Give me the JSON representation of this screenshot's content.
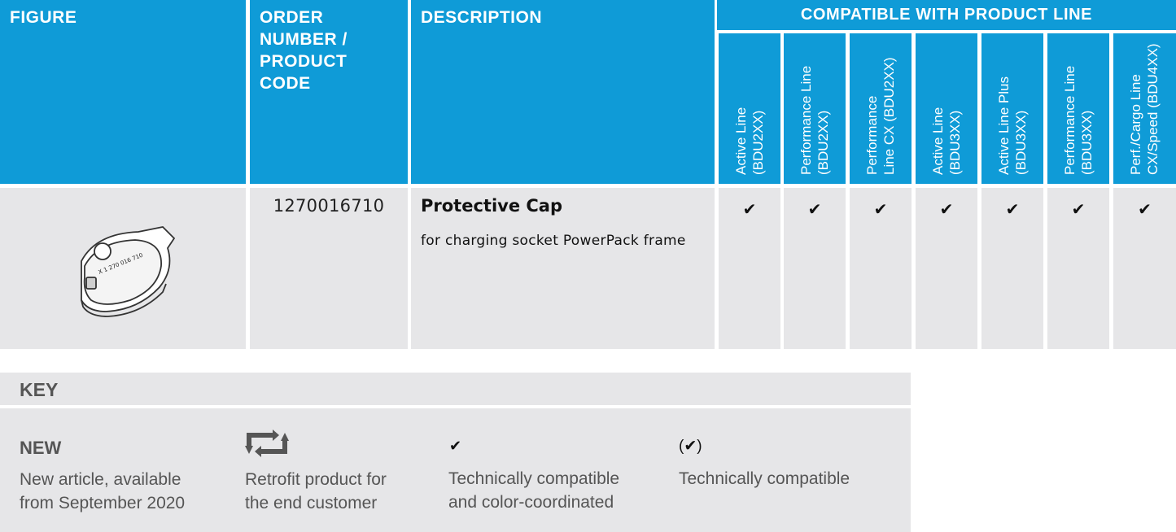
{
  "header": {
    "figure": "FIGURE",
    "order": "ORDER\nNUMBER /\nPRODUCT\nCODE",
    "description": "DESCRIPTION",
    "compatible": "COMPATIBLE WITH PRODUCT LINE",
    "product_lines": [
      "Active Line\n(BDU2XX)",
      "Performance Line\n(BDU2XX)",
      "Performance\nLine CX (BDU2XX)",
      "Active Line\n(BDU3XX)",
      "Active Line Plus\n(BDU3XX)",
      "Performance Line\n(BDU3XX)",
      "Perf./Cargo Line\nCX/Speed (BDU4XX)"
    ]
  },
  "row": {
    "order_number": "1270016710",
    "title": "Protective Cap",
    "subtitle": "for charging socket PowerPack frame",
    "checks": [
      "✔",
      "✔",
      "✔",
      "✔",
      "✔",
      "✔",
      "✔"
    ],
    "figure_icon": "protective-cap-image"
  },
  "key": {
    "title": "KEY",
    "items": [
      {
        "symbol": "NEW",
        "text": "New article, available\nfrom September 2020"
      },
      {
        "symbol": "retrofit-icon",
        "text": "Retrofit product for\nthe end customer"
      },
      {
        "symbol": "✔",
        "text": "Technically compatible\nand color-coordinated"
      },
      {
        "symbol": "(✔)",
        "text": "Technically compatible"
      }
    ]
  },
  "colors": {
    "header_blue": "#0f9bd7",
    "cell_gray": "#e6e6e8",
    "key_text": "#555555"
  }
}
